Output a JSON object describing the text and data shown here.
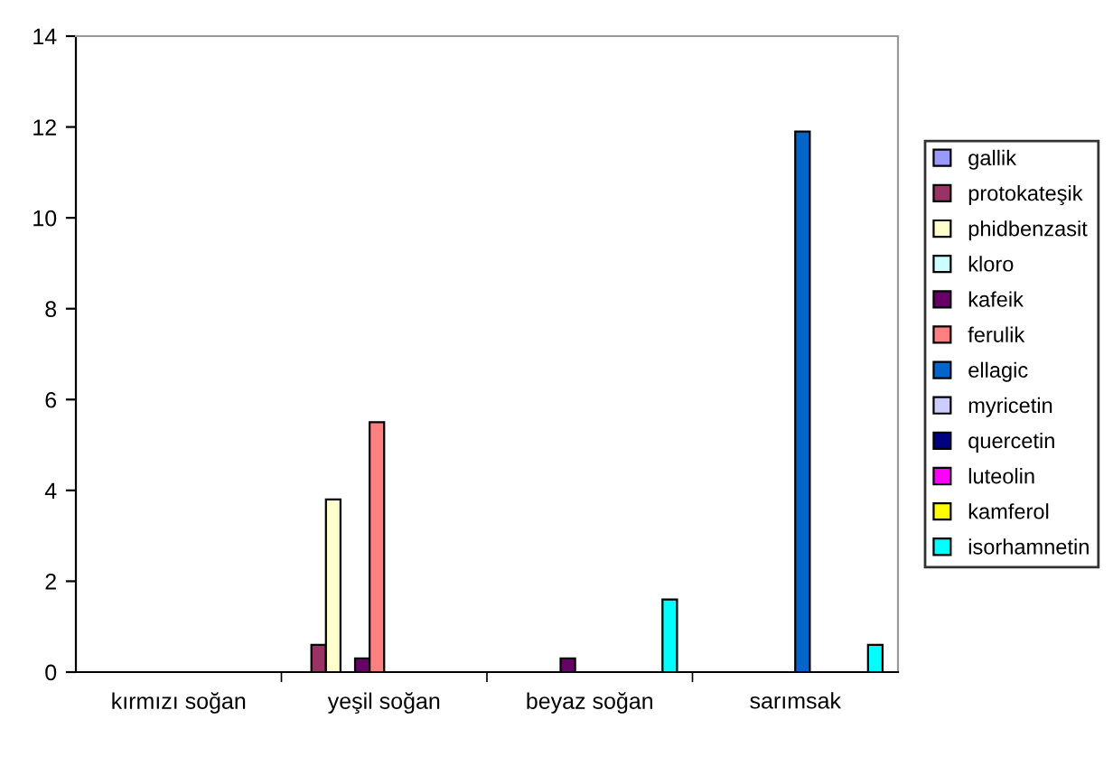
{
  "chart_data": {
    "type": "bar",
    "categories": [
      "kırmızı soğan",
      "yeşil soğan",
      "beyaz soğan",
      "sarımsak"
    ],
    "ylim": [
      0,
      14
    ],
    "yticks": [
      0,
      2,
      4,
      6,
      8,
      10,
      12,
      14
    ],
    "grid": false,
    "legend": "right",
    "series": [
      {
        "name": "gallik",
        "color": "#9999ff",
        "values": [
          null,
          null,
          null,
          null
        ]
      },
      {
        "name": "protokateşik",
        "color": "#993366",
        "values": [
          null,
          0.6,
          null,
          null
        ]
      },
      {
        "name": "phidbenzasit",
        "color": "#ffffcc",
        "values": [
          null,
          3.8,
          null,
          null
        ]
      },
      {
        "name": "kloro",
        "color": "#ccffff",
        "values": [
          null,
          null,
          null,
          null
        ]
      },
      {
        "name": "kafeik",
        "color": "#660066",
        "values": [
          null,
          0.3,
          0.3,
          null
        ]
      },
      {
        "name": "ferulik",
        "color": "#ff8080",
        "values": [
          null,
          5.5,
          null,
          null
        ]
      },
      {
        "name": "ellagic",
        "color": "#0066cc",
        "values": [
          null,
          null,
          null,
          11.9
        ]
      },
      {
        "name": "myricetin",
        "color": "#ccccff",
        "values": [
          null,
          null,
          null,
          null
        ]
      },
      {
        "name": "quercetin",
        "color": "#000080",
        "values": [
          null,
          null,
          null,
          null
        ]
      },
      {
        "name": "luteolin",
        "color": "#ff00ff",
        "values": [
          null,
          null,
          null,
          null
        ]
      },
      {
        "name": "kamferol",
        "color": "#ffff00",
        "values": [
          null,
          null,
          null,
          null
        ]
      },
      {
        "name": "isorhamnetin",
        "color": "#00ffff",
        "values": [
          null,
          null,
          1.6,
          0.6
        ]
      }
    ]
  }
}
